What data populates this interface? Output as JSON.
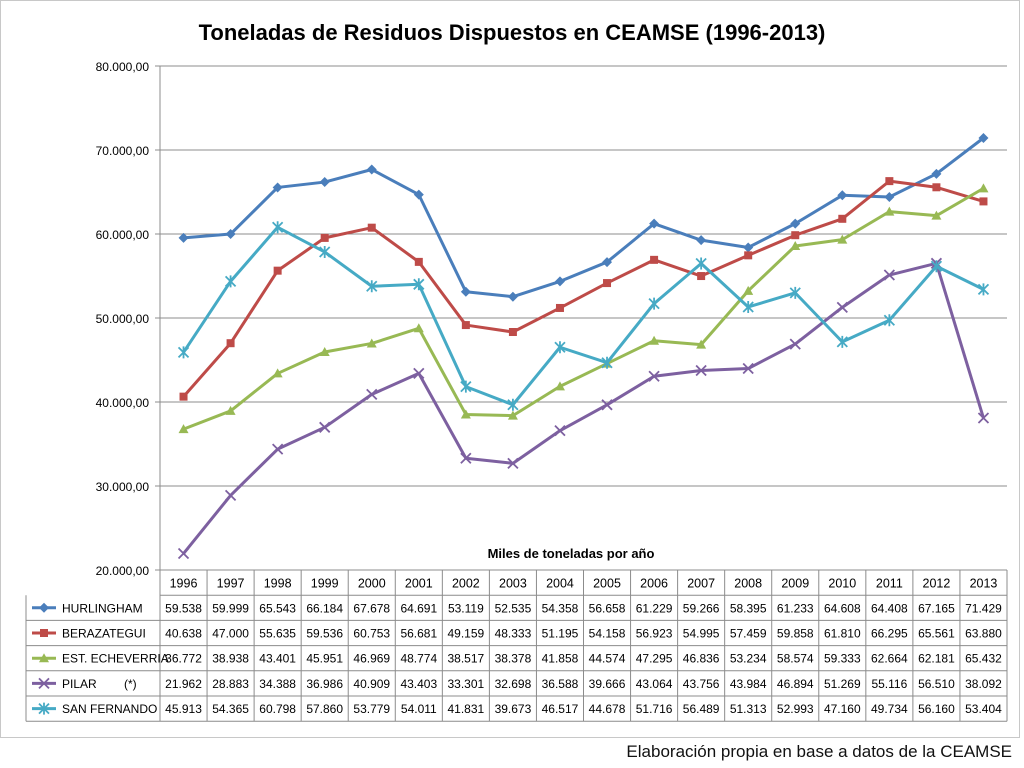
{
  "chart_data": {
    "type": "line",
    "title": "Toneladas de Residuos Dispuestos en CEAMSE (1996-2013)",
    "xlabel": "Miles de toneladas por año",
    "ylabel": "",
    "ylim": [
      20000,
      80000
    ],
    "yticks": [
      "20.000,00",
      "30.000,00",
      "40.000,00",
      "50.000,00",
      "60.000,00",
      "70.000,00",
      "80.000,00"
    ],
    "ytick_values": [
      20000,
      30000,
      40000,
      50000,
      60000,
      70000,
      80000
    ],
    "grid": true,
    "legend": "data-table",
    "categories": [
      "1996",
      "1997",
      "1998",
      "1999",
      "2000",
      "2001",
      "2002",
      "2003",
      "2004",
      "2005",
      "2006",
      "2007",
      "2008",
      "2009",
      "2010",
      "2011",
      "2012",
      "2013"
    ],
    "series": [
      {
        "name": "HURLINGHAM",
        "marker": "diamond",
        "color": "#4a7ebb",
        "values": [
          59538,
          59999,
          65543,
          66184,
          67678,
          64691,
          53119,
          52535,
          54358,
          56658,
          61229,
          59266,
          58395,
          61233,
          64608,
          64408,
          67165,
          71429
        ],
        "labels": [
          "59.538",
          "59.999",
          "65.543",
          "66.184",
          "67.678",
          "64.691",
          "53.119",
          "52.535",
          "54.358",
          "56.658",
          "61.229",
          "59.266",
          "58.395",
          "61.233",
          "64.608",
          "64.408",
          "67.165",
          "71.429"
        ]
      },
      {
        "name": "BERAZATEGUI",
        "marker": "square",
        "color": "#be4b48",
        "values": [
          40638,
          47000,
          55635,
          59536,
          60753,
          56681,
          49159,
          48333,
          51195,
          54158,
          56923,
          54995,
          57459,
          59858,
          61810,
          66295,
          65561,
          63880
        ],
        "labels": [
          "40.638",
          "47.000",
          "55.635",
          "59.536",
          "60.753",
          "56.681",
          "49.159",
          "48.333",
          "51.195",
          "54.158",
          "56.923",
          "54.995",
          "57.459",
          "59.858",
          "61.810",
          "66.295",
          "65.561",
          "63.880"
        ]
      },
      {
        "name": "EST. ECHEVERRIA",
        "marker": "triangle",
        "color": "#98b954",
        "values": [
          36772,
          38938,
          43401,
          45951,
          46969,
          48774,
          38517,
          38378,
          41858,
          44574,
          47295,
          46836,
          53234,
          58574,
          59333,
          62664,
          62181,
          65432
        ],
        "labels": [
          "36.772",
          "38.938",
          "43.401",
          "45.951",
          "46.969",
          "48.774",
          "38.517",
          "38.378",
          "41.858",
          "44.574",
          "47.295",
          "46.836",
          "53.234",
          "58.574",
          "59.333",
          "62.664",
          "62.181",
          "65.432"
        ]
      },
      {
        "name": "PILAR",
        "name_note": "(*)",
        "marker": "x",
        "color": "#7d60a0",
        "values": [
          21962,
          28883,
          34388,
          36986,
          40909,
          43403,
          33301,
          32698,
          36588,
          39666,
          43064,
          43756,
          43984,
          46894,
          51269,
          55116,
          56510,
          38092
        ],
        "labels": [
          "21.962",
          "28.883",
          "34.388",
          "36.986",
          "40.909",
          "43.403",
          "33.301",
          "32.698",
          "36.588",
          "39.666",
          "43.064",
          "43.756",
          "43.984",
          "46.894",
          "51.269",
          "55.116",
          "56.510",
          "38.092"
        ]
      },
      {
        "name": "SAN FERNANDO",
        "marker": "star",
        "color": "#46aac5",
        "values": [
          45913,
          54365,
          60798,
          57860,
          53779,
          54011,
          41831,
          39673,
          46517,
          44678,
          51716,
          56489,
          51313,
          52993,
          47160,
          49734,
          56160,
          53404
        ],
        "labels": [
          "45.913",
          "54.365",
          "60.798",
          "57.860",
          "53.779",
          "54.011",
          "41.831",
          "39.673",
          "46.517",
          "44.678",
          "51.716",
          "56.489",
          "51.313",
          "52.993",
          "47.160",
          "49.734",
          "56.160",
          "53.404"
        ]
      }
    ]
  },
  "footer": {
    "source_note": "Elaboración propia en base a datos de la CEAMSE"
  }
}
